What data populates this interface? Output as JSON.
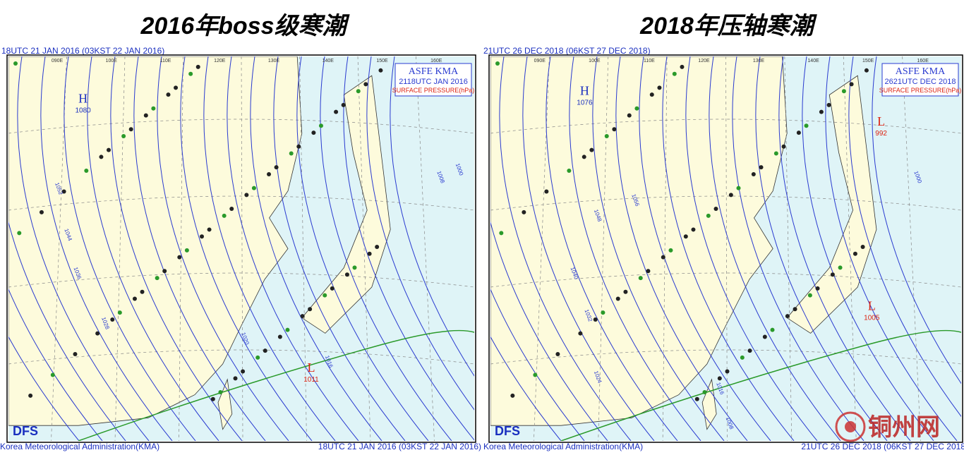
{
  "panels": [
    {
      "title": "2016年boss级寒潮",
      "header": "18UTC 21 JAN 2016 (03KST 22 JAN 2016)",
      "legend_box": {
        "line1": "ASFE  KMA",
        "line2": "2118UTC JAN 2016",
        "line3": "SURFACE PRESSURE(hPa)"
      },
      "logo": "DFS",
      "footer_left": "Korea Meteorological Administration(KMA)",
      "footer_right": "18UTC 21 JAN 2016 (03KST 22 JAN 2016)",
      "lon_labels": [
        "090E",
        "100E",
        "110E",
        "120E",
        "130E",
        "140E",
        "150E",
        "160E"
      ],
      "centers": [
        {
          "letter": "H",
          "value": "1080"
        },
        {
          "letter": "L",
          "value": "1011"
        }
      ],
      "isobar_labels": [
        "1052",
        "1044",
        "1036",
        "1028",
        "1020",
        "1016",
        "1008",
        "1000"
      ]
    },
    {
      "title": "2018年压轴寒潮",
      "header": "21UTC 26 DEC 2018 (06KST 27 DEC 2018)",
      "legend_box": {
        "line1": "ASFE  KMA",
        "line2": "2621UTC DEC 2018",
        "line3": "SURFACE PRESSURE(hPa)"
      },
      "logo": "DFS",
      "footer_left": "Korea Meteorological Administration(KMA)",
      "footer_right": "21UTC 26 DEC 2018 (06KST 27 DEC 2018)",
      "lon_labels": [
        "090E",
        "100E",
        "110E",
        "120E",
        "130E",
        "140E",
        "150E",
        "160E"
      ],
      "centers": [
        {
          "letter": "H",
          "value": "1076"
        },
        {
          "letter": "L",
          "value": "992"
        },
        {
          "letter": "L",
          "value": "1005"
        }
      ],
      "isobar_labels": [
        "1056",
        "1048",
        "1040",
        "1032",
        "1024",
        "1016",
        "1008",
        "1000"
      ]
    }
  ],
  "watermark": "铜州网"
}
